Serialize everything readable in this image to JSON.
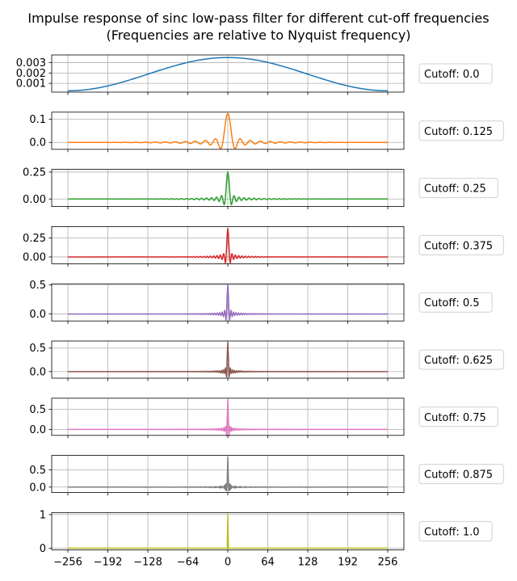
{
  "chart_data": {
    "type": "line",
    "title": "Impulse response of sinc low-pass filter for different cut-off frequencies",
    "subtitle": "(Frequencies are relative to Nyquist frequency)",
    "x_range": [
      -256,
      256
    ],
    "x_ticks": [
      -256,
      -192,
      -128,
      -64,
      0,
      64,
      128,
      192,
      256
    ],
    "x_tick_labels": [
      "−256",
      "−192",
      "−128",
      "−64",
      "0",
      "64",
      "128",
      "192",
      "256"
    ],
    "grid": true,
    "legend_position": "right of each subplot",
    "panels": [
      {
        "legend": "Cutoff: 0.0",
        "cutoff": 0.0,
        "color": "#1f77b4",
        "peak": 0.0035,
        "ylim": [
          0.00015,
          0.00375
        ],
        "yticks": [
          0.001,
          0.002,
          0.003
        ],
        "ytick_labels": [
          "0.001",
          "0.002",
          "0.003"
        ]
      },
      {
        "legend": "Cutoff: 0.125",
        "cutoff": 0.125,
        "color": "#ff7f0e",
        "peak": 0.125,
        "ylim": [
          -0.03,
          0.131
        ],
        "yticks": [
          0.0,
          0.1
        ],
        "ytick_labels": [
          "0.0",
          "0.1"
        ]
      },
      {
        "legend": "Cutoff: 0.25",
        "cutoff": 0.25,
        "color": "#2ca02c",
        "peak": 0.25,
        "ylim": [
          -0.07,
          0.275
        ],
        "yticks": [
          0.0,
          0.25
        ],
        "ytick_labels": [
          "0.00",
          "0.25"
        ]
      },
      {
        "legend": "Cutoff: 0.375",
        "cutoff": 0.375,
        "color": "#d62728",
        "peak": 0.375,
        "ylim": [
          -0.09,
          0.4
        ],
        "yticks": [
          0.0,
          0.25
        ],
        "ytick_labels": [
          "0.00",
          "0.25"
        ]
      },
      {
        "legend": "Cutoff: 0.5",
        "cutoff": 0.5,
        "color": "#9467bd",
        "peak": 0.5,
        "ylim": [
          -0.12,
          0.52
        ],
        "yticks": [
          0.0,
          0.5
        ],
        "ytick_labels": [
          "0.0",
          "0.5"
        ]
      },
      {
        "legend": "Cutoff: 0.625",
        "cutoff": 0.625,
        "color": "#8c564b",
        "peak": 0.625,
        "ylim": [
          -0.14,
          0.65
        ],
        "yticks": [
          0.0,
          0.5
        ],
        "ytick_labels": [
          "0.0",
          "0.5"
        ]
      },
      {
        "legend": "Cutoff: 0.75",
        "cutoff": 0.75,
        "color": "#e377c2",
        "peak": 0.75,
        "ylim": [
          -0.15,
          0.78
        ],
        "yticks": [
          0.0,
          0.5
        ],
        "ytick_labels": [
          "0.0",
          "0.5"
        ]
      },
      {
        "legend": "Cutoff: 0.875",
        "cutoff": 0.875,
        "color": "#7f7f7f",
        "peak": 0.875,
        "ylim": [
          -0.16,
          0.92
        ],
        "yticks": [
          0.0,
          0.5
        ],
        "ytick_labels": [
          "0.0",
          "0.5"
        ]
      },
      {
        "legend": "Cutoff: 1.0",
        "cutoff": 1.0,
        "color": "#bcbd22",
        "peak": 1.0,
        "ylim": [
          -0.05,
          1.06
        ],
        "yticks": [
          0,
          1
        ],
        "ytick_labels": [
          "0",
          "1"
        ]
      }
    ]
  }
}
